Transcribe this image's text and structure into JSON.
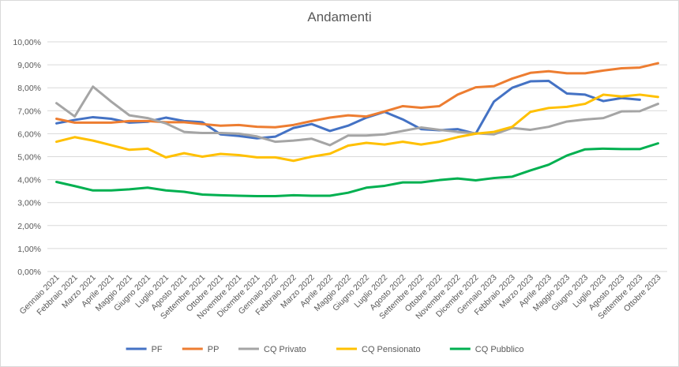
{
  "chart_data": {
    "type": "line",
    "title": "Andamenti",
    "xlabel": "",
    "ylabel": "",
    "ylim": [
      0,
      10
    ],
    "y_ticks": [
      "0,00%",
      "1,00%",
      "2,00%",
      "3,00%",
      "4,00%",
      "5,00%",
      "6,00%",
      "7,00%",
      "8,00%",
      "9,00%",
      "10,00%"
    ],
    "y_tick_values": [
      0,
      1,
      2,
      3,
      4,
      5,
      6,
      7,
      8,
      9,
      10
    ],
    "grid": true,
    "legend_position": "bottom",
    "categories": [
      "Gennaio 2021",
      "Febbraio 2021",
      "Marzo 2021",
      "Aprile 2021",
      "Maggio 2021",
      "Giugno 2021",
      "Luglio 2021",
      "Agosto 2021",
      "Settembre 2021",
      "Ottobre 2021",
      "Novembre 2021",
      "Dicembre 2021",
      "Gennaio 2022",
      "Febbraio 2022",
      "Marzo 2022",
      "Aprile 2022",
      "Maggio 2022",
      "Giugno 2022",
      "Luglio 2022",
      "Agosto 2022",
      "Settembre 2022",
      "Ottobre 2022",
      "Novembre 2022",
      "Dicembre 2022",
      "Gennaio 2023",
      "Febbraio 2023",
      "Marzo 2023",
      "Aprile 2023",
      "Maggio 2023",
      "Giugno 2023",
      "Luglio 2023",
      "Agosto 2023",
      "Settembre 2023",
      "Ottobre 2023"
    ],
    "series": [
      {
        "name": "PF",
        "color": "#4472C4",
        "values": [
          6.45,
          6.6,
          6.72,
          6.65,
          6.48,
          6.52,
          6.7,
          6.55,
          6.5,
          5.97,
          5.9,
          5.8,
          5.87,
          6.25,
          6.42,
          6.12,
          6.35,
          6.7,
          6.95,
          6.62,
          6.2,
          6.15,
          6.2,
          6.0,
          7.4,
          8.0,
          8.28,
          8.3,
          7.75,
          7.7,
          7.42,
          7.55,
          7.48,
          null
        ]
      },
      {
        "name": "PP",
        "color": "#ED7D31",
        "values": [
          6.65,
          6.48,
          6.48,
          6.48,
          6.55,
          6.55,
          6.5,
          6.5,
          6.42,
          6.35,
          6.38,
          6.3,
          6.28,
          6.38,
          6.55,
          6.7,
          6.8,
          6.75,
          6.97,
          7.2,
          7.13,
          7.2,
          7.7,
          8.02,
          8.07,
          8.4,
          8.65,
          8.72,
          8.63,
          8.63,
          8.75,
          8.85,
          8.88,
          9.07
        ]
      },
      {
        "name": "CQ Privato",
        "color": "#A5A5A5",
        "values": [
          7.33,
          6.75,
          8.05,
          7.4,
          6.8,
          6.68,
          6.45,
          6.08,
          6.03,
          6.03,
          6.0,
          5.88,
          5.65,
          5.7,
          5.78,
          5.5,
          5.92,
          5.92,
          5.97,
          6.12,
          6.27,
          6.17,
          6.08,
          6.02,
          5.97,
          6.25,
          6.17,
          6.3,
          6.53,
          6.62,
          6.68,
          6.97,
          6.98,
          7.3
        ]
      },
      {
        "name": "CQ Pensionato",
        "color": "#FFC000",
        "values": [
          5.65,
          5.85,
          5.7,
          5.5,
          5.3,
          5.35,
          4.97,
          5.15,
          5.0,
          5.12,
          5.07,
          4.97,
          4.97,
          4.82,
          5.0,
          5.13,
          5.48,
          5.6,
          5.53,
          5.65,
          5.53,
          5.65,
          5.85,
          6.0,
          6.08,
          6.3,
          6.95,
          7.12,
          7.17,
          7.3,
          7.7,
          7.62,
          7.7,
          7.6
        ]
      },
      {
        "name": "CQ Pubblico",
        "color": "#00B050",
        "values": [
          3.9,
          3.72,
          3.53,
          3.53,
          3.58,
          3.65,
          3.53,
          3.47,
          3.35,
          3.32,
          3.3,
          3.28,
          3.28,
          3.32,
          3.3,
          3.3,
          3.43,
          3.65,
          3.73,
          3.88,
          3.88,
          3.98,
          4.05,
          3.97,
          4.07,
          4.13,
          4.4,
          4.65,
          5.05,
          5.32,
          5.35,
          5.33,
          5.33,
          5.58
        ]
      }
    ]
  }
}
